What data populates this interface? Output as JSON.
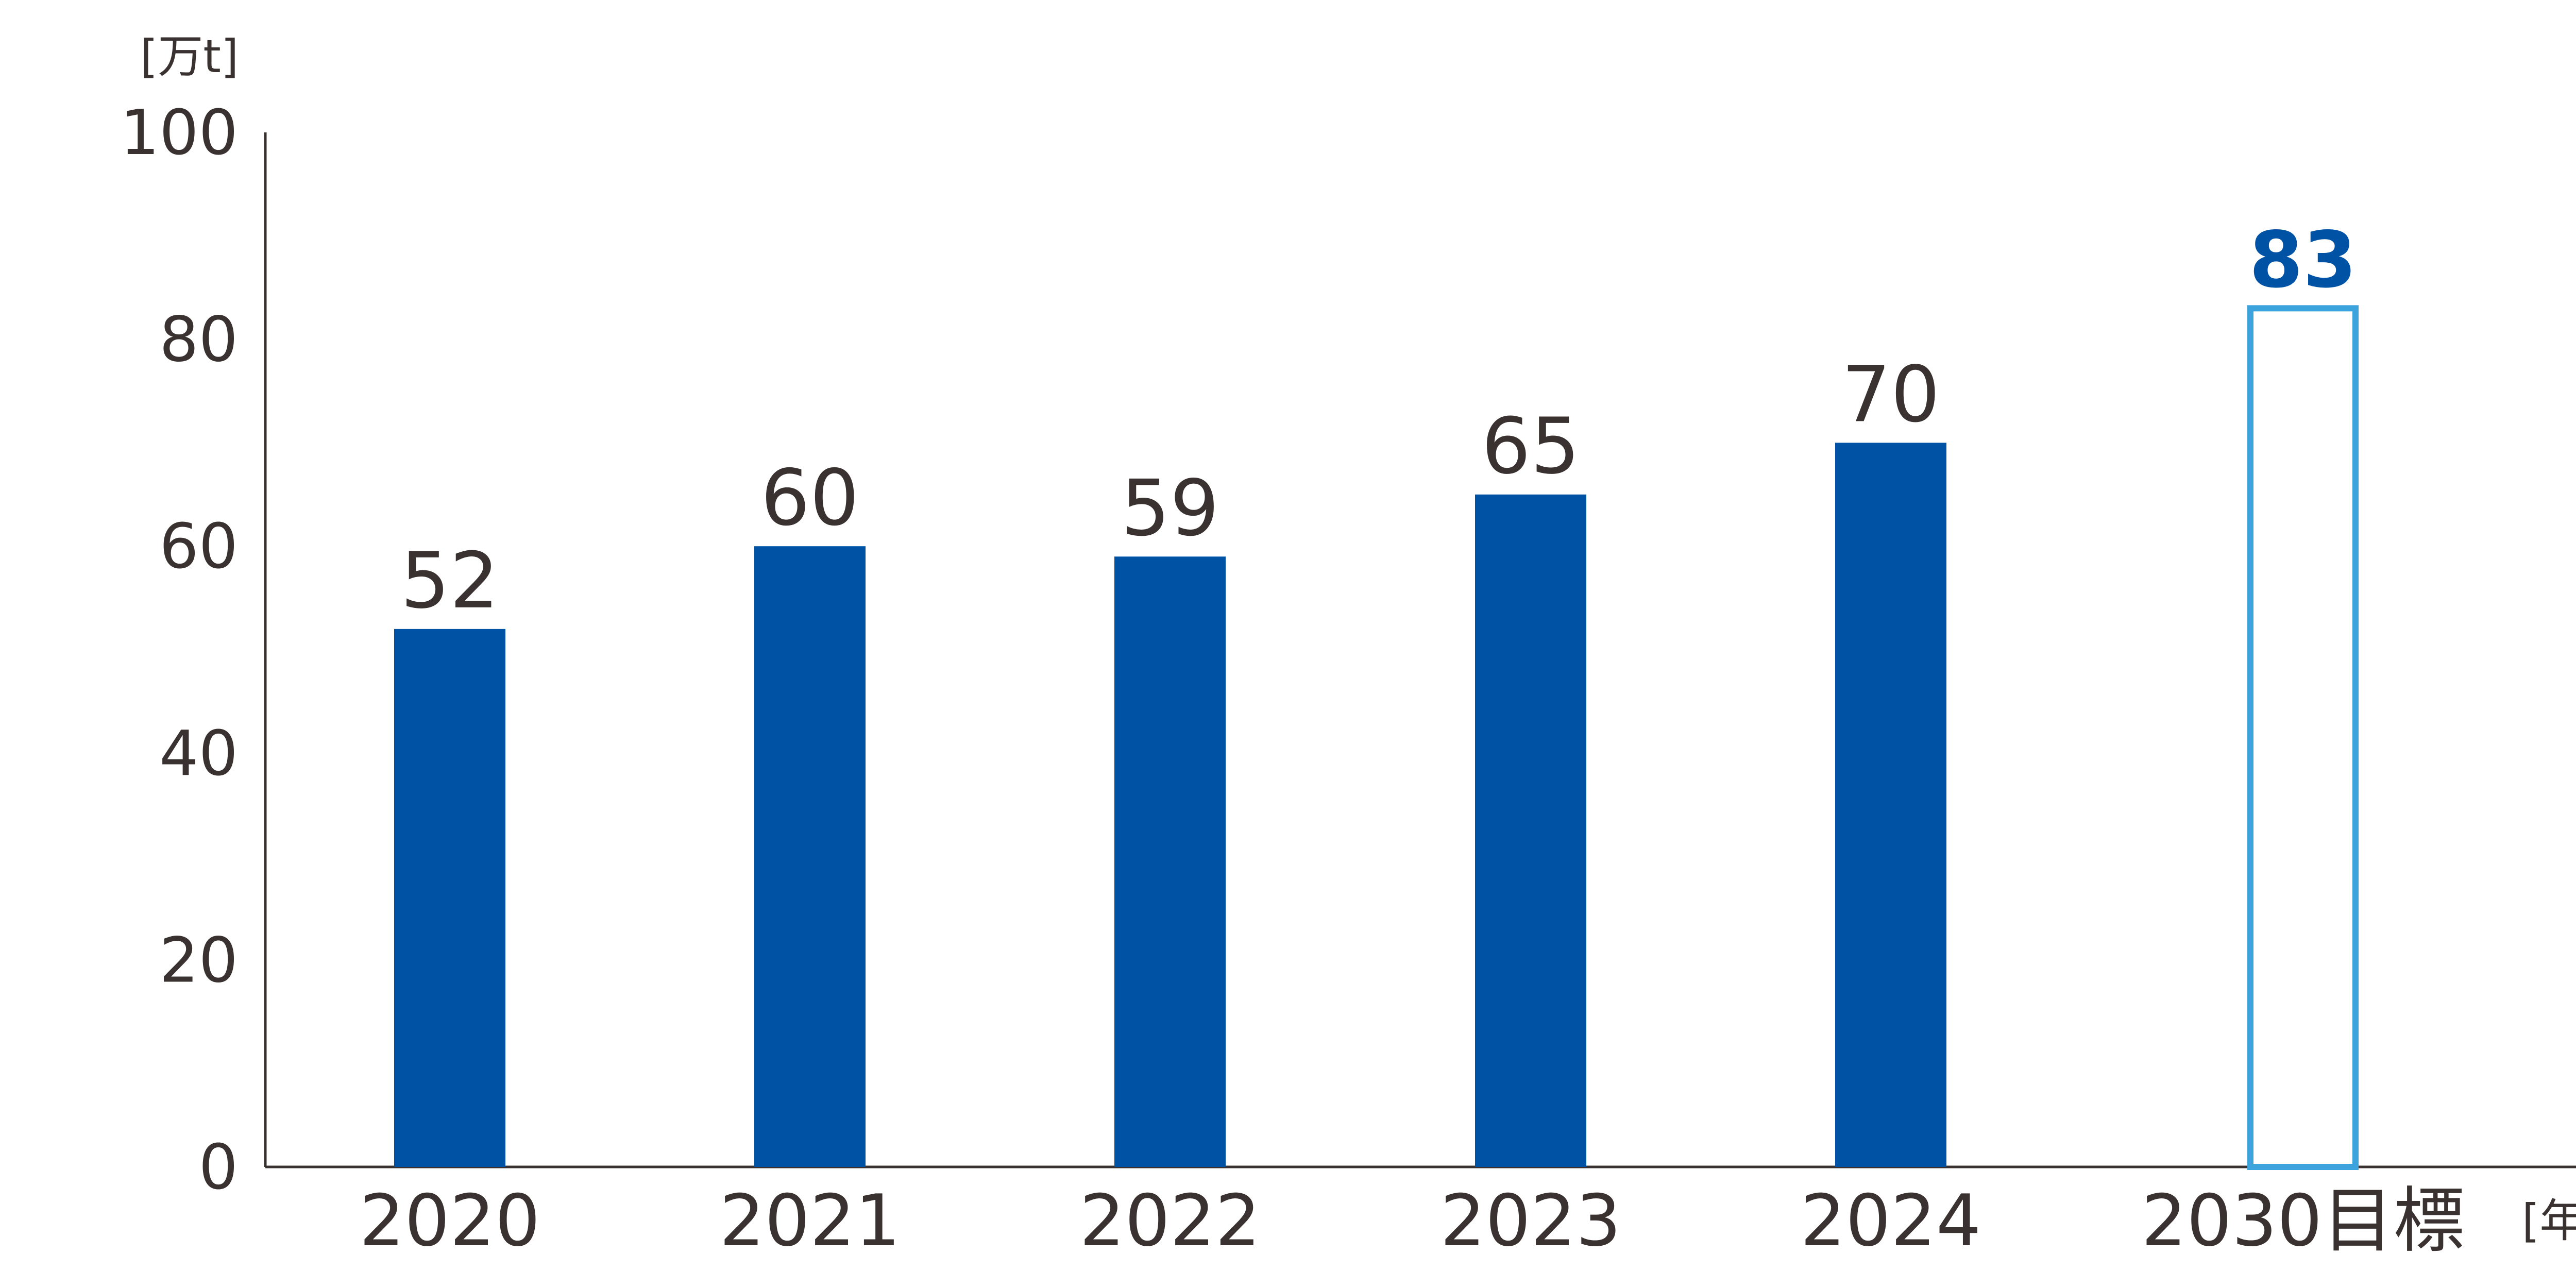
{
  "chart_data": {
    "type": "bar",
    "categories": [
      "2020",
      "2021",
      "2022",
      "2023",
      "2024",
      "2030目標"
    ],
    "values": [
      52,
      60,
      59,
      65,
      70,
      83
    ],
    "value_labels": [
      "52",
      "60",
      "59",
      "65",
      "70",
      "83"
    ],
    "target_index": 5,
    "ylabel": "[万t]",
    "xlabel": "[年度]",
    "ylim": [
      0,
      100
    ],
    "yticks": [
      0,
      20,
      40,
      60,
      80,
      100
    ],
    "ytick_labels": [
      "0",
      "20",
      "40",
      "60",
      "80",
      "100"
    ],
    "grid": false,
    "legend": "none"
  },
  "colors": {
    "bar": "#0052a5",
    "target_outline": "#3da3dd",
    "target_label": "#0052a5",
    "text": "#3a3230",
    "axis": "#3a3230",
    "background": "#ffffff"
  }
}
